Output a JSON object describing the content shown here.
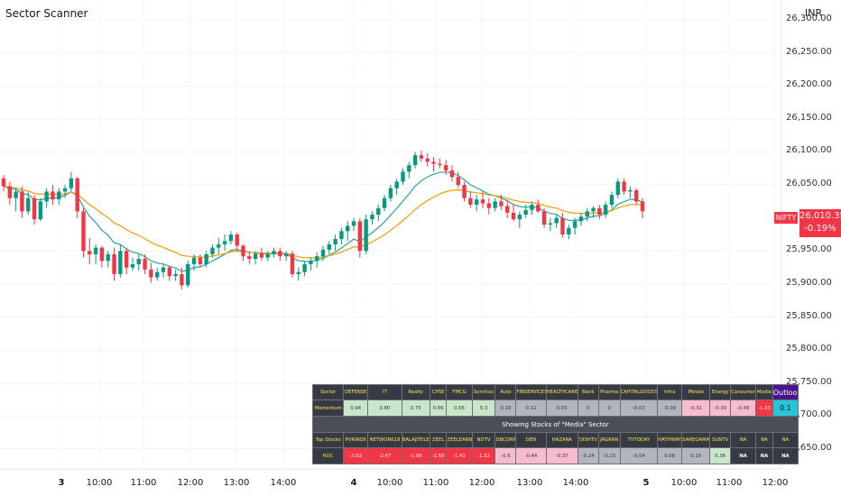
{
  "header": {
    "title": "Sector Scanner",
    "currency": "INR"
  },
  "price_axis": [
    "26,300.00",
    "26,250.00",
    "26,200.00",
    "26,150.00",
    "26,100.00",
    "26,050.00",
    "25,950.00",
    "25,900.00",
    "25,850.00",
    "25,800.00",
    "25,750.00",
    "25,700.00",
    "25,650.00"
  ],
  "time_axis": [
    "3",
    "10:00",
    "11:00",
    "12:00",
    "13:00",
    "14:00",
    "4",
    "10:00",
    "11:00",
    "12:00",
    "13:00",
    "14:00",
    "5",
    "10:00",
    "11:00",
    "12:00"
  ],
  "symbol_tag": "NIFTY",
  "last_price": "26,010.35",
  "last_change": "-0.19%",
  "colors": {
    "up": "#089981",
    "down": "#f23645",
    "ema_fast": "#26a69a",
    "ema_slow": "#ff9800",
    "table_bg": "#363a45",
    "header_text": "#ffeb3b"
  },
  "chart_data": {
    "type": "candlestick",
    "ylim": [
      25620,
      26330
    ],
    "price_ticks": [
      26300,
      26250,
      26200,
      26150,
      26100,
      26050,
      25950,
      25900,
      25850,
      25800,
      25750,
      25700,
      25650
    ],
    "series": [
      {
        "values": [
          [
            26060,
            26065,
            26040,
            26048
          ],
          [
            26048,
            26055,
            26020,
            26030
          ],
          [
            26030,
            26045,
            26010,
            26040
          ],
          [
            26040,
            26048,
            26000,
            26010
          ],
          [
            26010,
            26040,
            26005,
            26030
          ],
          [
            26030,
            26035,
            25990,
            25998
          ],
          [
            25998,
            26030,
            25995,
            26025
          ],
          [
            26025,
            26045,
            26015,
            26040
          ],
          [
            26040,
            26050,
            26020,
            26028
          ],
          [
            26028,
            26045,
            26020,
            26040
          ],
          [
            26040,
            26050,
            26030,
            26045
          ],
          [
            26045,
            26070,
            26040,
            26060
          ],
          [
            26060,
            26062,
            26000,
            26010
          ],
          [
            26010,
            26015,
            25940,
            25950
          ],
          [
            25950,
            25970,
            25930,
            25945
          ],
          [
            25945,
            25960,
            25930,
            25955
          ],
          [
            25955,
            25958,
            25925,
            25935
          ],
          [
            25935,
            25950,
            25925,
            25945
          ],
          [
            25945,
            25955,
            25905,
            25915
          ],
          [
            25915,
            25960,
            25910,
            25950
          ],
          [
            25950,
            25955,
            25915,
            25925
          ],
          [
            25925,
            25940,
            25920,
            25930
          ],
          [
            25930,
            25945,
            25920,
            25938
          ],
          [
            25938,
            25945,
            25915,
            25922
          ],
          [
            25922,
            25932,
            25902,
            25910
          ],
          [
            25910,
            25925,
            25905,
            25918
          ],
          [
            25918,
            25930,
            25910,
            25925
          ],
          [
            25925,
            25928,
            25905,
            25912
          ],
          [
            25912,
            25922,
            25905,
            25915
          ],
          [
            25915,
            25925,
            25892,
            25898
          ],
          [
            25898,
            25935,
            25895,
            25930
          ],
          [
            25930,
            25945,
            25920,
            25940
          ],
          [
            25940,
            25945,
            25925,
            25930
          ],
          [
            25930,
            25950,
            25925,
            25945
          ],
          [
            25945,
            25960,
            25940,
            25955
          ],
          [
            25955,
            25970,
            25945,
            25960
          ],
          [
            25960,
            25975,
            25950,
            25965
          ],
          [
            25965,
            25980,
            25960,
            25975
          ],
          [
            25975,
            25978,
            25950,
            25958
          ],
          [
            25958,
            25960,
            25935,
            25942
          ],
          [
            25942,
            25950,
            25930,
            25938
          ],
          [
            25938,
            25950,
            25930,
            25946
          ],
          [
            25946,
            25955,
            25935,
            25940
          ],
          [
            25940,
            25950,
            25935,
            25945
          ],
          [
            25945,
            25955,
            25940,
            25950
          ],
          [
            25950,
            25955,
            25935,
            25942
          ],
          [
            25942,
            25950,
            25935,
            25946
          ],
          [
            25946,
            25950,
            25910,
            25915
          ],
          [
            25915,
            25925,
            25905,
            25918
          ],
          [
            25918,
            25935,
            25912,
            25930
          ],
          [
            25930,
            25940,
            25920,
            25935
          ],
          [
            25935,
            25948,
            25925,
            25942
          ],
          [
            25942,
            25958,
            25935,
            25952
          ],
          [
            25952,
            25965,
            25945,
            25960
          ],
          [
            25960,
            25975,
            25950,
            25968
          ],
          [
            25968,
            25985,
            25960,
            25980
          ],
          [
            25980,
            25995,
            25965,
            25988
          ],
          [
            25988,
            26000,
            25980,
            25995
          ],
          [
            25995,
            26000,
            25940,
            25950
          ],
          [
            25950,
            26005,
            25945,
            25998
          ],
          [
            25998,
            26010,
            25990,
            26005
          ],
          [
            26005,
            26020,
            25995,
            26015
          ],
          [
            26015,
            26035,
            26010,
            26030
          ],
          [
            26030,
            26050,
            26025,
            26045
          ],
          [
            26045,
            26060,
            26035,
            26055
          ],
          [
            26055,
            26075,
            26050,
            26070
          ],
          [
            26070,
            26085,
            26060,
            26080
          ],
          [
            26080,
            26100,
            26075,
            26095
          ],
          [
            26095,
            26102,
            26085,
            26090
          ],
          [
            26090,
            26098,
            26078,
            26085
          ],
          [
            26085,
            26092,
            26070,
            26082
          ],
          [
            26082,
            26090,
            26075,
            26080
          ],
          [
            26080,
            26088,
            26065,
            26072
          ],
          [
            26072,
            26080,
            26055,
            26062
          ],
          [
            26062,
            26070,
            26045,
            26050
          ],
          [
            26050,
            26055,
            26025,
            26030
          ],
          [
            26030,
            26040,
            26015,
            26020
          ],
          [
            26020,
            26035,
            26010,
            26028
          ],
          [
            26028,
            26040,
            26015,
            26022
          ],
          [
            26022,
            26030,
            26005,
            26015
          ],
          [
            26015,
            26030,
            26010,
            26025
          ],
          [
            26025,
            26035,
            26012,
            26018
          ],
          [
            26018,
            26028,
            26000,
            26008
          ],
          [
            26008,
            26020,
            25995,
            25998
          ],
          [
            25998,
            26010,
            25985,
            26005
          ],
          [
            26005,
            26020,
            26000,
            26012
          ],
          [
            26012,
            26025,
            26005,
            26020
          ],
          [
            26020,
            26028,
            26008,
            26010
          ],
          [
            26010,
            26015,
            25985,
            25990
          ],
          [
            25990,
            26000,
            25980,
            25992
          ],
          [
            25992,
            26005,
            25985,
            26000
          ],
          [
            26000,
            26008,
            25970,
            25975
          ],
          [
            25975,
            25990,
            25968,
            25985
          ],
          [
            25985,
            26000,
            25975,
            25995
          ],
          [
            25995,
            26008,
            25988,
            26002
          ],
          [
            26002,
            26015,
            25995,
            26010
          ],
          [
            26010,
            26018,
            26000,
            26015
          ],
          [
            26015,
            26020,
            25998,
            26005
          ],
          [
            26005,
            26025,
            26000,
            26020
          ],
          [
            26020,
            26040,
            26015,
            26035
          ],
          [
            26035,
            26060,
            26030,
            26055
          ],
          [
            26055,
            26060,
            26035,
            26040
          ],
          [
            26040,
            26048,
            26030,
            26042
          ],
          [
            26042,
            26045,
            26020,
            26025
          ],
          [
            26025,
            26030,
            26000,
            26010
          ]
        ]
      }
    ]
  },
  "scanner": {
    "sector_row": [
      "Sector",
      "DEFENSE",
      "IT",
      "Realty",
      "CPSE",
      "FMCG",
      "Services",
      "Auto",
      "FINSERVICES",
      "HEALTHCARE",
      "Bank",
      "Pharma",
      "CAPITALGOODS",
      "Infra",
      "Metals",
      "Energy",
      "Consumer",
      "Media",
      "Outlook"
    ],
    "momentum_row": [
      "Momentum",
      "0.94",
      "0.80",
      "0.75",
      "0.66",
      "0.56",
      "0.3",
      "0.18",
      "0.12",
      "0.03",
      "0",
      "0",
      "-0.03",
      "-0.09",
      "-0.31",
      "-0.39",
      "-0.49",
      "-1.33",
      "0.1"
    ],
    "momentum_colors": [
      "",
      "#c8e6c9",
      "#c8e6c9",
      "#c8e6c9",
      "#c8e6c9",
      "#c8e6c9",
      "#c8e6c9",
      "#b2b5be",
      "#b2b5be",
      "#b2b5be",
      "#b2b5be",
      "#b2b5be",
      "#b2b5be",
      "#b2b5be",
      "#f8bbd0",
      "#f8bbd0",
      "#f8bbd0",
      "#f23645",
      ""
    ],
    "banner": "Showing Stocks of \"Media\" Sector",
    "stocks_row": [
      "Top Stocks",
      "PVRINOX",
      "NETWORK18",
      "BALAJITELE",
      "ZEEL",
      "ZEELEARN",
      "NDTV",
      "DBCORP",
      "DEN",
      "HAZARA",
      "DISHTV",
      "JAGRAN",
      "TVTODAY",
      "HATHWAY",
      "SAREGAMA",
      "SUNTV",
      "NA",
      "NA",
      "NA"
    ],
    "roc_row": [
      "ROC",
      "-3.02",
      "-2.47",
      "-1.66",
      "-1.59",
      "-1.41",
      "-1.32",
      "-0.6",
      "-0.44",
      "-0.37",
      "-0.24",
      "-0.23",
      "-0.04",
      "0.08",
      "0.19",
      "0.36",
      "NA",
      "NA",
      "NA"
    ],
    "roc_colors": [
      "",
      "#f23645",
      "#f23645",
      "#f23645",
      "#f23645",
      "#f23645",
      "#f23645",
      "#f8bbd0",
      "#f8bbd0",
      "#f8bbd0",
      "#b2b5be",
      "#b2b5be",
      "#b2b5be",
      "#b2b5be",
      "#b2b5be",
      "#c8e6c9",
      "",
      "",
      ""
    ]
  }
}
